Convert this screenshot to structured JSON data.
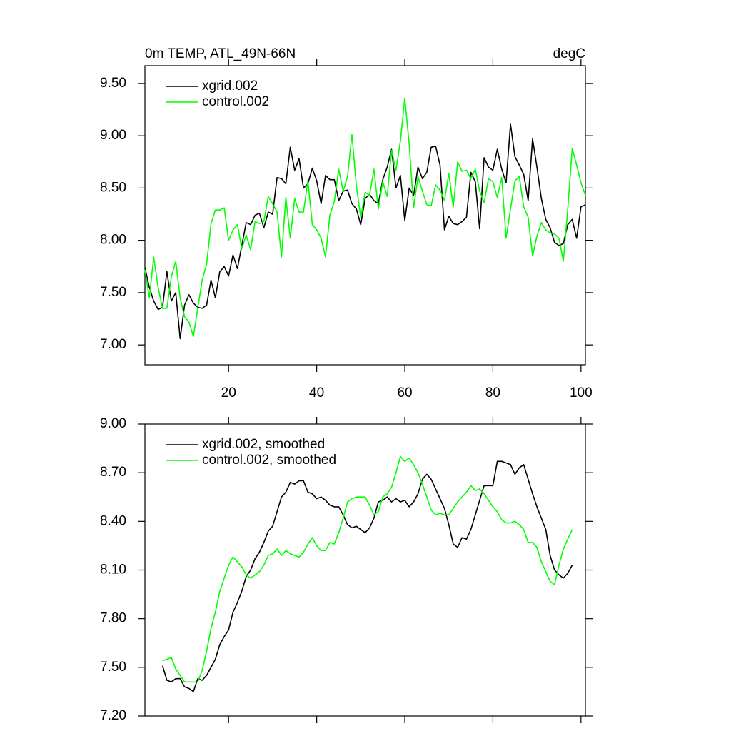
{
  "chart_data": [
    {
      "type": "line",
      "title": "0m TEMP, ATL_49N-66N",
      "right_title": "degC",
      "legend": "upper left",
      "xlim": [
        1,
        101
      ],
      "ylim": [
        6.81,
        9.67
      ],
      "xticks": [
        20,
        40,
        60,
        80,
        100
      ],
      "yticks": [
        {
          "value": 7.0,
          "label": "7.00"
        },
        {
          "value": 7.5,
          "label": "7.50"
        },
        {
          "value": 8.0,
          "label": "8.00"
        },
        {
          "value": 8.5,
          "label": "8.50"
        },
        {
          "value": 9.0,
          "label": "9.00"
        },
        {
          "value": 9.5,
          "label": "9.50"
        }
      ],
      "x": [
        1,
        2,
        3,
        4,
        5,
        6,
        7,
        8,
        9,
        10,
        11,
        12,
        13,
        14,
        15,
        16,
        17,
        18,
        19,
        20,
        21,
        22,
        23,
        24,
        25,
        26,
        27,
        28,
        29,
        30,
        31,
        32,
        33,
        34,
        35,
        36,
        37,
        38,
        39,
        40,
        41,
        42,
        43,
        44,
        45,
        46,
        47,
        48,
        49,
        50,
        51,
        52,
        53,
        54,
        55,
        56,
        57,
        58,
        59,
        60,
        61,
        62,
        63,
        64,
        65,
        66,
        67,
        68,
        69,
        70,
        71,
        72,
        73,
        74,
        75,
        76,
        77,
        78,
        79,
        80,
        81,
        82,
        83,
        84,
        85,
        86,
        87,
        88,
        89,
        90,
        91,
        92,
        93,
        94,
        95,
        96,
        97,
        98,
        99,
        100,
        101
      ],
      "series": [
        {
          "name": "xgrid.002",
          "color": "#000000",
          "values": [
            7.74,
            7.55,
            7.42,
            7.34,
            7.36,
            7.7,
            7.42,
            7.5,
            7.06,
            7.38,
            7.48,
            7.4,
            7.36,
            7.35,
            7.38,
            7.62,
            7.45,
            7.7,
            7.75,
            7.66,
            7.86,
            7.73,
            7.95,
            8.17,
            8.15,
            8.24,
            8.26,
            8.12,
            8.27,
            8.25,
            8.6,
            8.59,
            8.54,
            8.89,
            8.67,
            8.78,
            8.5,
            8.54,
            8.69,
            8.57,
            8.35,
            8.62,
            8.58,
            8.58,
            8.38,
            8.47,
            8.48,
            8.35,
            8.3,
            8.15,
            8.4,
            8.44,
            8.38,
            8.35,
            8.58,
            8.7,
            8.87,
            8.5,
            8.62,
            8.19,
            8.5,
            8.43,
            8.7,
            8.59,
            8.65,
            8.89,
            8.9,
            8.72,
            8.1,
            8.23,
            8.16,
            8.15,
            8.18,
            8.22,
            8.65,
            8.56,
            8.11,
            8.79,
            8.7,
            8.67,
            8.87,
            8.68,
            8.55,
            9.11,
            8.8,
            8.72,
            8.63,
            8.38,
            8.97,
            8.7,
            8.4,
            8.2,
            8.12,
            7.98,
            7.95,
            7.97,
            8.15,
            8.2,
            8.02,
            8.32,
            8.34
          ]
        },
        {
          "name": "control.002",
          "color": "#00ff00",
          "values": [
            7.72,
            7.45,
            7.84,
            7.55,
            7.35,
            7.35,
            7.65,
            7.8,
            7.45,
            7.27,
            7.22,
            7.08,
            7.35,
            7.62,
            7.77,
            8.16,
            8.29,
            8.29,
            8.31,
            8.0,
            8.1,
            8.15,
            7.92,
            8.05,
            7.91,
            8.18,
            8.16,
            8.18,
            8.42,
            8.35,
            8.27,
            7.84,
            8.41,
            8.02,
            8.4,
            8.27,
            8.27,
            8.57,
            8.15,
            8.1,
            8.02,
            7.84,
            8.24,
            8.37,
            8.68,
            8.47,
            8.61,
            9.01,
            8.52,
            8.22,
            8.46,
            8.43,
            8.68,
            8.3,
            8.56,
            8.42,
            8.86,
            8.67,
            8.95,
            9.36,
            8.92,
            8.31,
            8.61,
            8.47,
            8.34,
            8.33,
            8.53,
            8.48,
            8.38,
            8.64,
            8.32,
            8.75,
            8.66,
            8.67,
            8.59,
            8.68,
            8.47,
            8.36,
            8.59,
            8.56,
            8.41,
            8.6,
            8.02,
            8.3,
            8.57,
            8.61,
            8.32,
            8.22,
            7.85,
            8.04,
            8.17,
            8.1,
            8.07,
            8.06,
            8.02,
            7.8,
            8.3,
            8.88,
            8.72,
            8.55,
            8.43
          ]
        }
      ]
    },
    {
      "type": "line",
      "legend": "upper left",
      "xlim": [
        1,
        101
      ],
      "ylim": [
        7.2,
        9.0
      ],
      "xticks": [
        20,
        40,
        60,
        80,
        100
      ],
      "yticks": [
        {
          "value": 7.2,
          "label": "7.20"
        },
        {
          "value": 7.5,
          "label": "7.50"
        },
        {
          "value": 7.8,
          "label": "7.80"
        },
        {
          "value": 8.1,
          "label": "8.10"
        },
        {
          "value": 8.4,
          "label": "8.40"
        },
        {
          "value": 8.7,
          "label": "8.70"
        },
        {
          "value": 9.0,
          "label": "9.00"
        }
      ],
      "x": [
        5,
        6,
        7,
        8,
        9,
        10,
        11,
        12,
        13,
        14,
        15,
        16,
        17,
        18,
        19,
        20,
        21,
        22,
        23,
        24,
        25,
        26,
        27,
        28,
        29,
        30,
        31,
        32,
        33,
        34,
        35,
        36,
        37,
        38,
        39,
        40,
        41,
        42,
        43,
        44,
        45,
        46,
        47,
        48,
        49,
        50,
        51,
        52,
        53,
        54,
        55,
        56,
        57,
        58,
        59,
        60,
        61,
        62,
        63,
        64,
        65,
        66,
        67,
        68,
        69,
        70,
        71,
        72,
        73,
        74,
        75,
        76,
        77,
        78,
        79,
        80,
        81,
        82,
        83,
        84,
        85,
        86,
        87,
        88,
        89,
        90,
        91,
        92,
        93,
        94,
        95,
        96,
        97,
        98
      ],
      "series": [
        {
          "name": "xgrid.002, smoothed",
          "color": "#000000",
          "values": [
            7.51,
            7.42,
            7.41,
            7.43,
            7.43,
            7.38,
            7.37,
            7.35,
            7.43,
            7.42,
            7.45,
            7.5,
            7.55,
            7.64,
            7.69,
            7.73,
            7.84,
            7.9,
            7.97,
            8.06,
            8.1,
            8.17,
            8.21,
            8.27,
            8.34,
            8.37,
            8.46,
            8.55,
            8.58,
            8.64,
            8.63,
            8.65,
            8.65,
            8.58,
            8.57,
            8.54,
            8.55,
            8.53,
            8.5,
            8.49,
            8.49,
            8.44,
            8.38,
            8.36,
            8.37,
            8.35,
            8.33,
            8.36,
            8.42,
            8.52,
            8.53,
            8.55,
            8.52,
            8.54,
            8.52,
            8.53,
            8.49,
            8.52,
            8.57,
            8.66,
            8.69,
            8.66,
            8.6,
            8.54,
            8.48,
            8.38,
            8.26,
            8.24,
            8.3,
            8.29,
            8.35,
            8.44,
            8.53,
            8.62,
            8.62,
            8.62,
            8.77,
            8.77,
            8.76,
            8.75,
            8.69,
            8.73,
            8.75,
            8.66,
            8.57,
            8.49,
            8.42,
            8.35,
            8.19,
            8.1,
            8.07,
            8.05,
            8.08,
            8.13
          ]
        },
        {
          "name": "control.002, smoothed",
          "color": "#00ff00",
          "values": [
            7.54,
            7.55,
            7.56,
            7.49,
            7.45,
            7.41,
            7.41,
            7.41,
            7.41,
            7.48,
            7.6,
            7.74,
            7.84,
            7.97,
            8.05,
            8.13,
            8.18,
            8.15,
            8.12,
            8.07,
            8.05,
            8.07,
            8.09,
            8.13,
            8.19,
            8.2,
            8.23,
            8.19,
            8.22,
            8.2,
            8.19,
            8.18,
            8.21,
            8.26,
            8.3,
            8.25,
            8.22,
            8.22,
            8.27,
            8.26,
            8.33,
            8.42,
            8.52,
            8.54,
            8.55,
            8.55,
            8.55,
            8.5,
            8.44,
            8.46,
            8.55,
            8.57,
            8.61,
            8.7,
            8.8,
            8.77,
            8.79,
            8.75,
            8.7,
            8.63,
            8.55,
            8.47,
            8.44,
            8.45,
            8.44,
            8.44,
            8.48,
            8.52,
            8.55,
            8.58,
            8.62,
            8.59,
            8.6,
            8.57,
            8.53,
            8.49,
            8.46,
            8.41,
            8.39,
            8.39,
            8.4,
            8.38,
            8.35,
            8.27,
            8.27,
            8.24,
            8.15,
            8.09,
            8.03,
            8.01,
            8.13,
            8.23,
            8.29,
            8.35
          ]
        }
      ]
    }
  ]
}
